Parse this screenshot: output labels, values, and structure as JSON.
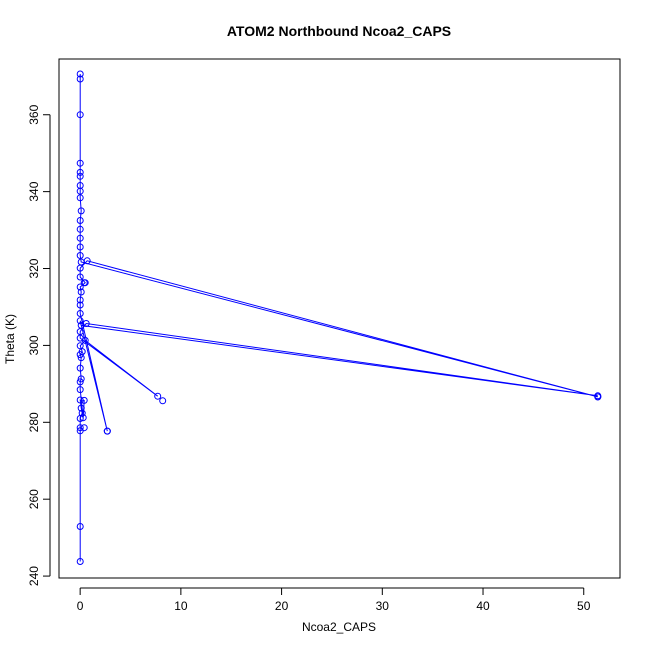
{
  "chart_data": {
    "type": "line",
    "title": "ATOM2 Northbound Ncoa2_CAPS",
    "xlabel": "Ncoa2_CAPS",
    "ylabel": "Theta (K)",
    "xlim": [
      -2.1,
      53.6
    ],
    "ylim": [
      239.5,
      374.5
    ],
    "xticks": [
      0,
      10,
      20,
      30,
      40,
      50
    ],
    "yticks": [
      240,
      260,
      280,
      300,
      320,
      340,
      360
    ],
    "xtick_labels": [
      "0",
      "10",
      "20",
      "30",
      "40",
      "50"
    ],
    "ytick_labels": [
      "240",
      "260",
      "280",
      "300",
      "320",
      "340",
      "360"
    ],
    "grid": false,
    "legend": "none",
    "series_color": "#0000ff",
    "marker": "open-circle",
    "series": [
      {
        "points": [
          [
            0.0,
            243.8
          ],
          [
            0.0,
            252.9
          ],
          [
            0.0,
            277.8
          ],
          [
            0.0,
            278.6
          ],
          [
            0.0,
            281.0
          ],
          [
            0.2,
            282.4
          ],
          [
            0.1,
            283.7
          ],
          [
            0.0,
            285.8
          ],
          [
            0.4,
            285.7
          ],
          [
            0.3,
            281.2
          ],
          [
            0.0,
            288.5
          ],
          [
            0.0,
            290.5
          ],
          [
            0.1,
            291.3
          ],
          [
            0.0,
            294.1
          ],
          [
            0.1,
            296.8
          ],
          [
            0.0,
            297.6
          ],
          [
            0.2,
            298.4
          ],
          [
            0.0,
            299.9
          ],
          [
            0.5,
            301.3
          ],
          [
            7.7,
            286.8
          ],
          [
            0.0,
            301.9
          ],
          [
            0.0,
            303.6
          ],
          [
            0.6,
            305.7
          ],
          [
            51.4,
            286.9
          ],
          [
            0.1,
            305.2
          ],
          [
            0.0,
            306.4
          ],
          [
            2.7,
            277.7
          ],
          [
            0.0,
            308.3
          ],
          [
            0.0,
            310.5
          ],
          [
            0.0,
            311.8
          ],
          [
            0.1,
            313.9
          ],
          [
            0.0,
            315.2
          ],
          [
            0.5,
            316.3
          ],
          [
            0.0,
            317.8
          ],
          [
            0.0,
            320.1
          ],
          [
            0.7,
            322.0
          ],
          [
            51.4,
            286.6
          ],
          [
            0.1,
            321.7
          ],
          [
            0.0,
            323.4
          ],
          [
            0.0,
            325.6
          ],
          [
            0.0,
            327.9
          ],
          [
            0.0,
            330.2
          ],
          [
            0.0,
            332.5
          ],
          [
            0.1,
            335.0
          ],
          [
            0.0,
            338.4
          ],
          [
            0.0,
            340.1
          ],
          [
            0.0,
            341.6
          ],
          [
            0.0,
            344.0
          ],
          [
            0.0,
            345.0
          ],
          [
            0.0,
            347.4
          ],
          [
            0.0,
            360.0
          ],
          [
            0.0,
            369.3
          ],
          [
            0.0,
            370.6
          ]
        ]
      }
    ],
    "extra_markers": [
      [
        8.2,
        285.6
      ],
      [
        2.7,
        277.7
      ],
      [
        51.4,
        286.6
      ],
      [
        0.4,
        278.6
      ],
      [
        0.4,
        316.3
      ]
    ]
  }
}
